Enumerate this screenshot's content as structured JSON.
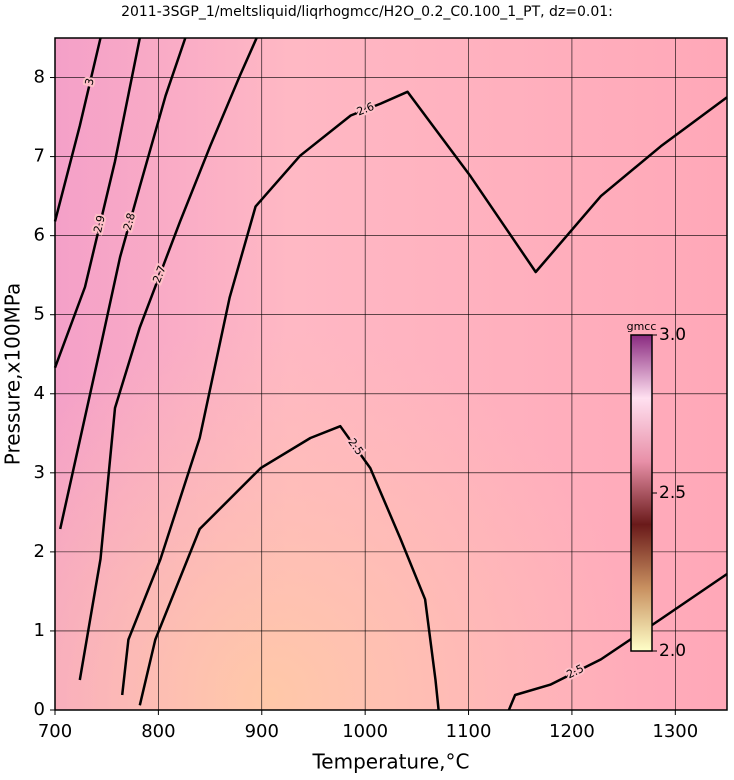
{
  "chart_data": {
    "type": "contour",
    "title": "2011-3SGP_1/meltsliquid/liqrhogmcc/H2O_0.2_C0.100_1_PT, dz=0.01:",
    "x_label": "Temperature,°C",
    "y_label": "Pressure,x100MPa",
    "xlim": [
      700,
      1350
    ],
    "xticks": [
      700,
      800,
      900,
      1000,
      1100,
      1200,
      1300
    ],
    "ylim": [
      0,
      8.5
    ],
    "yticks": [
      0,
      1,
      2,
      3,
      4,
      5,
      6,
      7,
      8
    ],
    "grid": true,
    "series": [
      {
        "name": "2.5",
        "color": "#000000",
        "x": [
          782,
          797,
          840,
          899,
          947,
          976,
          1005,
          1034,
          1058,
          1068,
          1071
        ],
        "y": [
          0.06,
          0.89,
          2.29,
          3.06,
          3.44,
          3.59,
          3.06,
          2.17,
          1.4,
          0.38,
          0
        ]
      },
      {
        "name": "2.5",
        "color": "#000000",
        "x": [
          1139,
          1145,
          1179,
          1228,
          1286,
          1350
        ],
        "y": [
          0,
          0.19,
          0.32,
          0.64,
          1.15,
          1.72
        ]
      },
      {
        "name": "2.6",
        "color": "#000000",
        "x": [
          765,
          771,
          802,
          840,
          869,
          894,
          937,
          986,
          1015,
          1041,
          1102,
          1165,
          1228,
          1286,
          1350
        ],
        "y": [
          0.19,
          0.89,
          1.91,
          3.44,
          5.22,
          6.37,
          7.01,
          7.52,
          7.67,
          7.82,
          6.75,
          5.54,
          6.5,
          7.13,
          7.75
        ]
      },
      {
        "name": "2.7",
        "color": "#000000",
        "x": [
          724,
          744,
          758,
          782,
          821,
          850,
          879,
          895
        ],
        "y": [
          0.38,
          1.91,
          3.82,
          4.84,
          6.18,
          7.13,
          8.03,
          8.5
        ]
      },
      {
        "name": "2.8",
        "color": "#000000",
        "x": [
          705,
          744,
          763,
          782,
          807,
          826
        ],
        "y": [
          2.29,
          4.59,
          5.73,
          6.62,
          7.77,
          8.5
        ]
      },
      {
        "name": "2.9",
        "color": "#000000",
        "x": [
          700,
          729,
          758,
          782
        ],
        "y": [
          4.33,
          5.35,
          6.94,
          8.5
        ]
      },
      {
        "name": "3",
        "color": "#000000",
        "x": [
          700,
          724,
          744
        ],
        "y": [
          6.18,
          7.39,
          8.5
        ]
      }
    ],
    "colorbar": {
      "label": "gmcc",
      "lim": [
        2,
        3
      ],
      "ticks": [
        {
          "value": 2,
          "label": "2.0"
        },
        {
          "value": 2.5,
          "label": "2.5"
        },
        {
          "value": 3,
          "label": "3.0"
        }
      ],
      "colors": [
        "#ffffc8",
        "#c89060",
        "#6a1a1a",
        "#e890a8",
        "#ffe0f0",
        "#8a2a80"
      ]
    }
  }
}
